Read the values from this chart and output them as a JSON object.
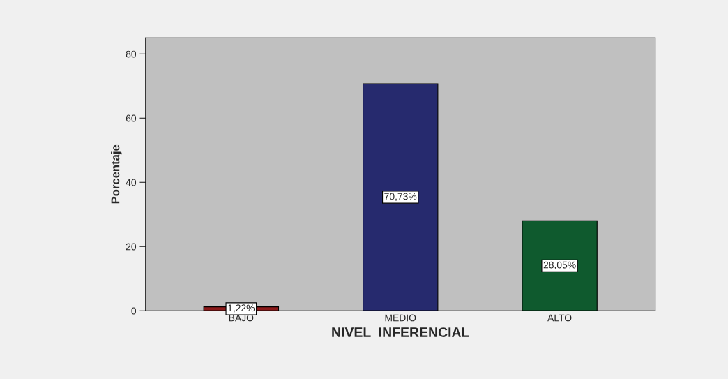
{
  "chart_data": {
    "type": "bar",
    "xlabel": "NIVEL  INFERENCIAL",
    "ylabel": "Porcentaje",
    "categories": [
      "BAJO",
      "MEDIO",
      "ALTO"
    ],
    "values": [
      1.22,
      70.73,
      28.05
    ],
    "colors": [
      "#8b1a1a",
      "#262a6e",
      "#0f5a2e"
    ],
    "value_labels": [
      "1,22%",
      "70,73%",
      "28,05%"
    ],
    "ylim": [
      0,
      85
    ],
    "yticks": [
      0,
      20,
      40,
      60,
      80
    ],
    "grid": false
  }
}
